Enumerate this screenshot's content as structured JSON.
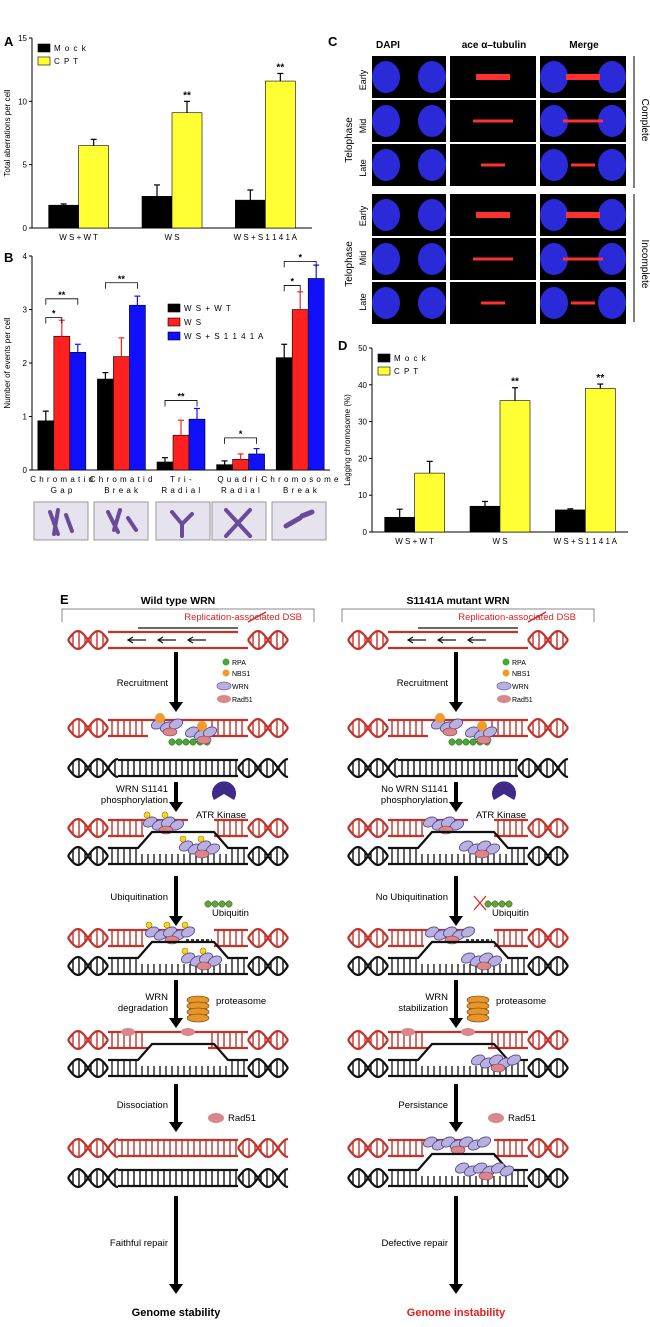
{
  "panels": {
    "A": {
      "label": "A",
      "chart_data": {
        "type": "bar",
        "categories": [
          "W S + W T",
          "W S",
          "W S + S 1 1 4 1 A"
        ],
        "series": [
          {
            "name": "Mock",
            "color": "#000000",
            "values": [
              1.8,
              2.5,
              2.2
            ],
            "errors": [
              0.1,
              0.9,
              0.8
            ]
          },
          {
            "name": "CPT",
            "color": "#ffff33",
            "values": [
              6.5,
              9.1,
              11.6
            ],
            "errors": [
              0.5,
              0.9,
              0.6
            ]
          }
        ],
        "significance": [
          "",
          "**",
          "**"
        ],
        "ylabel": "Total aberrations per cell",
        "ylim": [
          0,
          15
        ],
        "yticks": [
          "0",
          "5",
          "10",
          "15"
        ],
        "legend": [
          "M o c k",
          "C P T"
        ]
      }
    },
    "B": {
      "label": "B",
      "chart_data": {
        "type": "bar",
        "categories": [
          "Chromatid Gap",
          "Chromatid Break",
          "Tri-Radial",
          "Quadri-Radial",
          "Chromosome Break"
        ],
        "category_lines": [
          [
            "C h r o m a t i d",
            "G a p"
          ],
          [
            "C h r o m a t i d",
            "B r e a k"
          ],
          [
            "T r i -",
            "R a d i a l"
          ],
          [
            "Q u a d r i -",
            "R a d i a l"
          ],
          [
            "C h r o m o s o m e",
            "B r e a k"
          ]
        ],
        "series": [
          {
            "name": "WS+WT",
            "color": "#000000",
            "values": [
              0.92,
              1.7,
              0.15,
              0.1,
              2.1
            ],
            "errors": [
              0.18,
              0.12,
              0.08,
              0.07,
              0.25
            ]
          },
          {
            "name": "WS",
            "color": "#ff2020",
            "values": [
              2.5,
              2.12,
              0.65,
              0.2,
              3.0
            ],
            "errors": [
              0.3,
              0.35,
              0.28,
              0.1,
              0.33
            ]
          },
          {
            "name": "WS+S1141A",
            "color": "#1010ff",
            "values": [
              2.2,
              3.08,
              0.95,
              0.3,
              3.58
            ],
            "errors": [
              0.15,
              0.17,
              0.2,
              0.1,
              0.25
            ]
          }
        ],
        "ylabel": "Number of events per cell",
        "ylim": [
          0,
          4
        ],
        "yticks": [
          "0",
          "1",
          "2",
          "3",
          "4"
        ],
        "legend": [
          "W S + W T",
          "W S",
          "W S + S 1 1 4 1 A"
        ],
        "sig_star": "*",
        "sig_dstar": "**"
      }
    },
    "C": {
      "label": "C",
      "col_headers": [
        "DAPI",
        "ace α–tubulin",
        "Merge"
      ],
      "group_label": "Telophase",
      "row_labels": [
        "Early",
        "Mid",
        "Late"
      ],
      "side_labels": [
        "Complete",
        "Incomplete"
      ]
    },
    "D": {
      "label": "D",
      "chart_data": {
        "type": "bar",
        "categories": [
          "W S + W T",
          "W S",
          "W S + S 1 1 4 1 A"
        ],
        "series": [
          {
            "name": "Mock",
            "color": "#000000",
            "values": [
              4,
              7,
              6
            ],
            "errors": [
              2.2,
              1.3,
              0.3
            ]
          },
          {
            "name": "CPT",
            "color": "#ffff33",
            "values": [
              16,
              35.7,
              39
            ],
            "errors": [
              3.2,
              3.5,
              1.2
            ]
          }
        ],
        "significance": [
          "",
          "**",
          "**"
        ],
        "ylabel": "Lagging chromosome (%)",
        "ylim": [
          0,
          50
        ],
        "yticks": [
          "0",
          "10",
          "20",
          "30",
          "40",
          "50"
        ],
        "legend": [
          "M o c k",
          "C P T"
        ]
      }
    },
    "E": {
      "label": "E",
      "left": {
        "title": "Wild type WRN",
        "dsb": "Replication-associated DSB",
        "proteins": [
          "RPA",
          "NBS1",
          "WRN",
          "Rad51"
        ],
        "steps": [
          "Recruitment",
          "WRN S1141",
          "phosphorylation",
          "Ubiquitination",
          "WRN",
          "degradation",
          "Dissociation",
          "Faithful repair"
        ],
        "atr": "ATR Kinase",
        "ubiquitin": "Ubiquitin",
        "proteasome": "proteasome",
        "rad51": "Rad51",
        "outcome": "Genome stability",
        "outcome_color": "#000000"
      },
      "right": {
        "title": "S1141A mutant WRN",
        "dsb": "Replication-associated DSB",
        "proteins": [
          "RPA",
          "NBS1",
          "WRN",
          "Rad51"
        ],
        "steps": [
          "Recruitment",
          "No WRN S1141",
          "phosphorylation",
          "No Ubiquitination",
          "WRN",
          "stabilization",
          "Persistance",
          "Defective repair"
        ],
        "atr": "ATR Kinase",
        "ubiquitin": "Ubiquitin",
        "proteasome": "proteasome",
        "rad51": "Rad51",
        "outcome": "Genome instability",
        "outcome_color": "#e02020"
      }
    }
  },
  "colors": {
    "dna_red": "#c0332b",
    "dna_black": "#111111",
    "wrn": "#b9b0e0",
    "rpa": "#44aa33",
    "nbs1": "#f39a2c",
    "rad51": "#d9868c",
    "atr": "#3f2a8a",
    "dsb_text": "#e02020"
  }
}
